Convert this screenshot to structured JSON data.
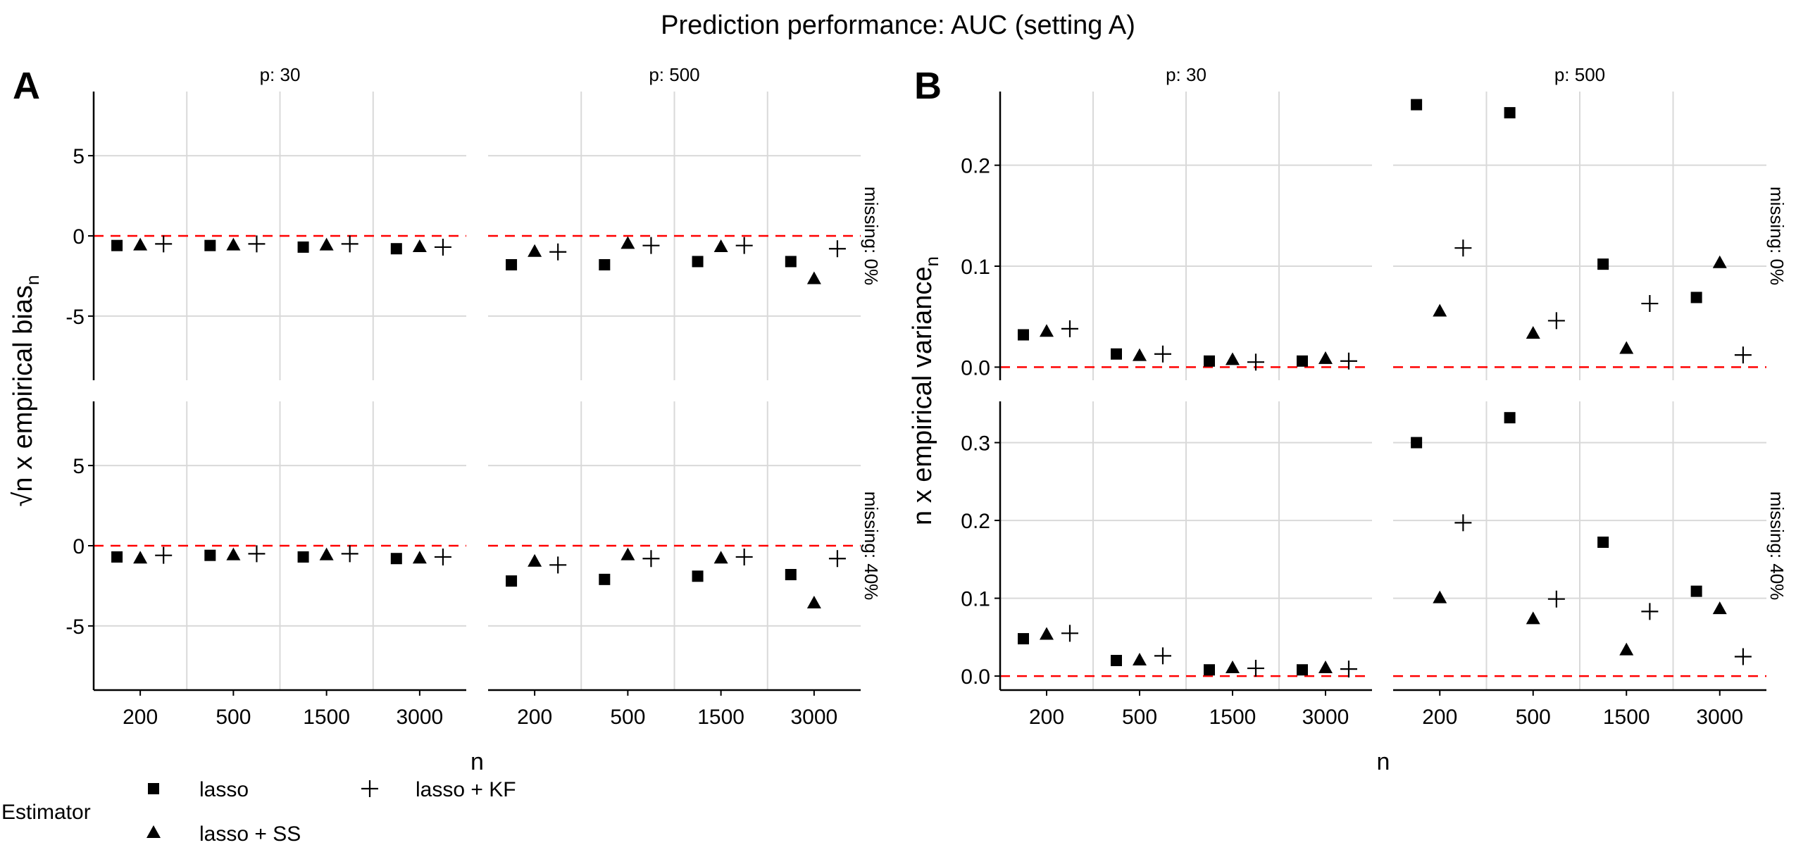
{
  "title": "Prediction performance: AUC (setting A)",
  "colors": {
    "points": "#000000",
    "reference": "#ff0000",
    "grid": "#d9d9d9",
    "axis": "#000000"
  },
  "legend": {
    "title": "Estimator",
    "entries": [
      {
        "label": "lasso",
        "shape": "square"
      },
      {
        "label": "lasso + SS",
        "shape": "triangle"
      },
      {
        "label": "lasso + KF",
        "shape": "plus"
      }
    ]
  },
  "chart_data": [
    {
      "panel_label": "A",
      "type": "scatter",
      "ylabel": "√n x empirical bias",
      "ylabel_sub": "n",
      "xlabel": "n",
      "categories": [
        "200",
        "500",
        "1500",
        "3000"
      ],
      "reference_line": 0,
      "facets": [
        {
          "col": "p: 30",
          "row": "missing: 0%",
          "ylim": [
            -9,
            9
          ],
          "yticks": [
            -5,
            0,
            5
          ],
          "ytick_labels": [
            "-5",
            "0",
            "5"
          ],
          "series": [
            {
              "estimator": "lasso",
              "values": [
                -0.6,
                -0.6,
                -0.7,
                -0.8
              ]
            },
            {
              "estimator": "lasso + SS",
              "values": [
                -0.6,
                -0.6,
                -0.6,
                -0.7
              ]
            },
            {
              "estimator": "lasso + KF",
              "values": [
                -0.5,
                -0.5,
                -0.5,
                -0.7
              ]
            }
          ]
        },
        {
          "col": "p: 500",
          "row": "missing: 0%",
          "ylim": [
            -9,
            9
          ],
          "yticks": [
            -5,
            0,
            5
          ],
          "ytick_labels": [
            "-5",
            "0",
            "5"
          ],
          "series": [
            {
              "estimator": "lasso",
              "values": [
                -1.8,
                -1.8,
                -1.6,
                -1.6
              ]
            },
            {
              "estimator": "lasso + SS",
              "values": [
                -1.0,
                -0.5,
                -0.7,
                -2.7
              ]
            },
            {
              "estimator": "lasso + KF",
              "values": [
                -1.0,
                -0.6,
                -0.6,
                -0.8
              ]
            }
          ]
        },
        {
          "col": "p: 30",
          "row": "missing: 40%",
          "ylim": [
            -9,
            9
          ],
          "yticks": [
            -5,
            0,
            5
          ],
          "ytick_labels": [
            "-5",
            "0",
            "5"
          ],
          "series": [
            {
              "estimator": "lasso",
              "values": [
                -0.7,
                -0.6,
                -0.7,
                -0.8
              ]
            },
            {
              "estimator": "lasso + SS",
              "values": [
                -0.8,
                -0.6,
                -0.6,
                -0.8
              ]
            },
            {
              "estimator": "lasso + KF",
              "values": [
                -0.6,
                -0.5,
                -0.5,
                -0.7
              ]
            }
          ]
        },
        {
          "col": "p: 500",
          "row": "missing: 40%",
          "ylim": [
            -9,
            9
          ],
          "yticks": [
            -5,
            0,
            5
          ],
          "ytick_labels": [
            "-5",
            "0",
            "5"
          ],
          "series": [
            {
              "estimator": "lasso",
              "values": [
                -2.2,
                -2.1,
                -1.9,
                -1.8
              ]
            },
            {
              "estimator": "lasso + SS",
              "values": [
                -1.0,
                -0.6,
                -0.8,
                -3.6
              ]
            },
            {
              "estimator": "lasso + KF",
              "values": [
                -1.2,
                -0.8,
                -0.7,
                -0.8
              ]
            }
          ]
        }
      ]
    },
    {
      "panel_label": "B",
      "type": "scatter",
      "ylabel": "n x empirical variance",
      "ylabel_sub": "n",
      "xlabel": "n",
      "categories": [
        "200",
        "500",
        "1500",
        "3000"
      ],
      "reference_line": 0,
      "facets": [
        {
          "col": "p: 30",
          "row": "missing: 0%",
          "ylim": [
            -0.013,
            0.273
          ],
          "yticks": [
            0,
            0.1,
            0.2
          ],
          "ytick_labels": [
            "0.0",
            "0.1",
            "0.2"
          ],
          "series": [
            {
              "estimator": "lasso",
              "values": [
                0.032,
                0.013,
                0.006,
                0.006
              ]
            },
            {
              "estimator": "lasso + SS",
              "values": [
                0.035,
                0.011,
                0.007,
                0.008
              ]
            },
            {
              "estimator": "lasso + KF",
              "values": [
                0.038,
                0.013,
                0.005,
                0.006
              ]
            }
          ]
        },
        {
          "col": "p: 500",
          "row": "missing: 0%",
          "ylim": [
            -0.013,
            0.273
          ],
          "yticks": [
            0,
            0.1,
            0.2
          ],
          "ytick_labels": [
            "0.0",
            "0.1",
            "0.2"
          ],
          "series": [
            {
              "estimator": "lasso",
              "values": [
                0.26,
                0.252,
                0.102,
                0.069
              ]
            },
            {
              "estimator": "lasso + SS",
              "values": [
                0.055,
                0.033,
                0.018,
                0.103
              ]
            },
            {
              "estimator": "lasso + KF",
              "values": [
                0.118,
                0.046,
                0.063,
                0.012
              ]
            }
          ]
        },
        {
          "col": "p: 30",
          "row": "missing: 40%",
          "ylim": [
            -0.018,
            0.353
          ],
          "yticks": [
            0,
            0.1,
            0.2,
            0.3
          ],
          "ytick_labels": [
            "0.0",
            "0.1",
            "0.2",
            "0.3"
          ],
          "series": [
            {
              "estimator": "lasso",
              "values": [
                0.048,
                0.02,
                0.008,
                0.008
              ]
            },
            {
              "estimator": "lasso + SS",
              "values": [
                0.053,
                0.02,
                0.01,
                0.01
              ]
            },
            {
              "estimator": "lasso + KF",
              "values": [
                0.055,
                0.026,
                0.01,
                0.009
              ]
            }
          ]
        },
        {
          "col": "p: 500",
          "row": "missing: 40%",
          "ylim": [
            -0.018,
            0.353
          ],
          "yticks": [
            0,
            0.1,
            0.2,
            0.3
          ],
          "ytick_labels": [
            "0.0",
            "0.1",
            "0.2",
            "0.3"
          ],
          "series": [
            {
              "estimator": "lasso",
              "values": [
                0.3,
                0.332,
                0.172,
                0.109
              ]
            },
            {
              "estimator": "lasso + SS",
              "values": [
                0.1,
                0.073,
                0.033,
                0.086
              ]
            },
            {
              "estimator": "lasso + KF",
              "values": [
                0.197,
                0.099,
                0.083,
                0.025
              ]
            }
          ]
        }
      ]
    }
  ]
}
